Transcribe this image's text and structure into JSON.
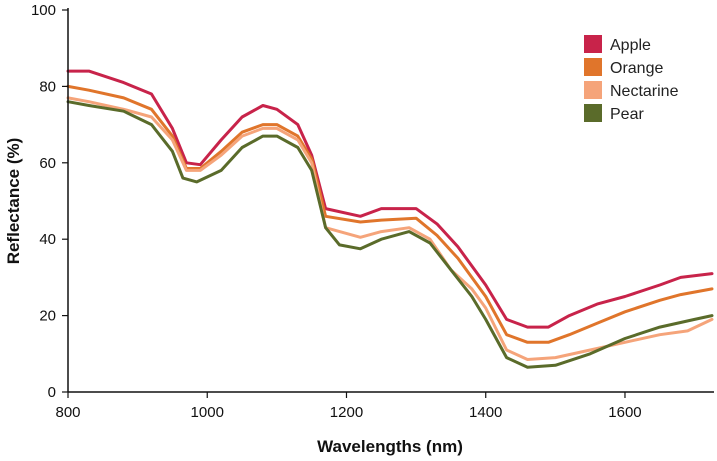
{
  "chart_data": {
    "type": "line",
    "title": "",
    "xlabel": "Wavelengths (nm)",
    "ylabel": "Reflectance (%)",
    "xlim": [
      800,
      1725
    ],
    "ylim": [
      0,
      100
    ],
    "xticks": [
      800,
      1000,
      1200,
      1400,
      1600
    ],
    "yticks": [
      0,
      20,
      40,
      60,
      80,
      100
    ],
    "grid": false,
    "legend_position": "top-right",
    "series": [
      {
        "name": "Apple",
        "color": "#c8234a",
        "x": [
          800,
          830,
          880,
          920,
          950,
          970,
          990,
          1020,
          1050,
          1080,
          1100,
          1130,
          1150,
          1170,
          1220,
          1250,
          1300,
          1330,
          1360,
          1400,
          1430,
          1460,
          1490,
          1520,
          1560,
          1600,
          1650,
          1680,
          1725
        ],
        "y": [
          84,
          84,
          81,
          78,
          69,
          60,
          59.5,
          66,
          72,
          75,
          74,
          70,
          62,
          48,
          46,
          48,
          48,
          44,
          38,
          28,
          19,
          17,
          17,
          20,
          23,
          25,
          28,
          30,
          31
        ]
      },
      {
        "name": "Orange",
        "color": "#e0752b",
        "x": [
          800,
          830,
          880,
          920,
          950,
          970,
          990,
          1020,
          1050,
          1080,
          1100,
          1130,
          1150,
          1170,
          1220,
          1250,
          1300,
          1330,
          1360,
          1400,
          1430,
          1460,
          1490,
          1520,
          1560,
          1600,
          1650,
          1680,
          1725
        ],
        "y": [
          80,
          79,
          77,
          74,
          67,
          58.5,
          58.5,
          63,
          68,
          70,
          70,
          67,
          61,
          46,
          44.5,
          45,
          45.5,
          41,
          35,
          25,
          15,
          13,
          13,
          15,
          18,
          21,
          24,
          25.5,
          27
        ]
      },
      {
        "name": "Nectarine",
        "color": "#f5a47a",
        "x": [
          800,
          830,
          880,
          920,
          950,
          970,
          990,
          1020,
          1050,
          1080,
          1100,
          1130,
          1150,
          1170,
          1220,
          1250,
          1290,
          1320,
          1350,
          1380,
          1400,
          1430,
          1460,
          1500,
          1550,
          1600,
          1650,
          1690,
          1725
        ],
        "y": [
          77,
          76,
          74,
          72,
          66,
          58,
          58,
          62,
          67,
          69,
          69,
          66,
          60,
          43,
          40.5,
          42,
          43,
          40,
          32,
          27,
          22,
          11,
          8.5,
          9,
          11,
          13,
          15,
          16,
          19
        ]
      },
      {
        "name": "Pear",
        "color": "#5a6b2a",
        "x": [
          800,
          830,
          880,
          920,
          950,
          965,
          985,
          1020,
          1050,
          1080,
          1100,
          1130,
          1150,
          1170,
          1190,
          1220,
          1250,
          1290,
          1320,
          1350,
          1380,
          1400,
          1430,
          1460,
          1500,
          1550,
          1600,
          1650,
          1700,
          1725
        ],
        "y": [
          76,
          75,
          73.5,
          70,
          63,
          56,
          55,
          58,
          64,
          67,
          67,
          64,
          58,
          43,
          38.5,
          37.5,
          40,
          42,
          39,
          32,
          25,
          19,
          9,
          6.5,
          7,
          10,
          14,
          17,
          19,
          20
        ]
      }
    ]
  }
}
